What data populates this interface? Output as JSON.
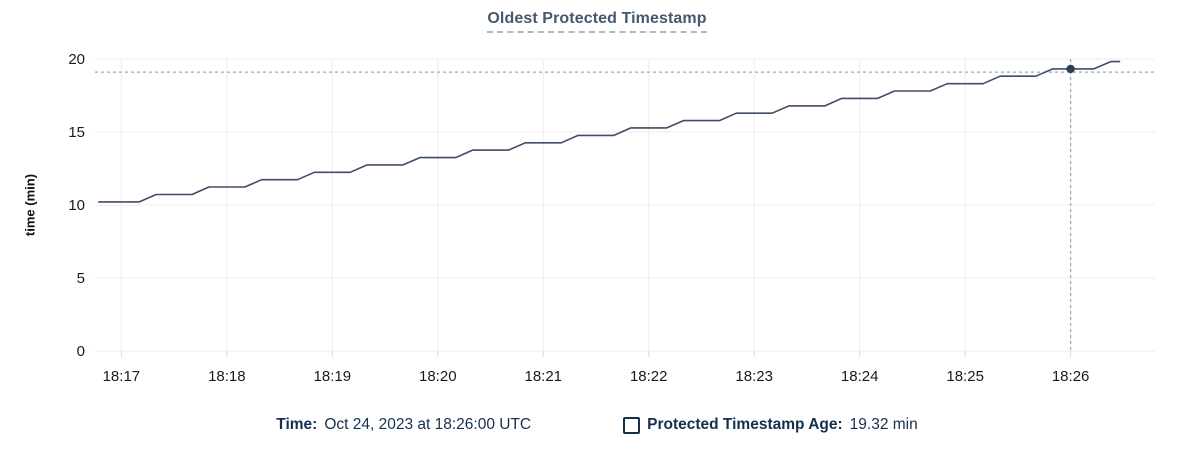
{
  "colors": {
    "line": "#3e4e66",
    "grid": "#ededed",
    "tick": "#d9d9d9",
    "crosshair": "#94aabb",
    "dot": "#2c3e55",
    "axis_text": "#1a1a1a",
    "title": "#46586f",
    "title_underline": "#a9bac8",
    "footer_text": "#14304f"
  },
  "chart_data": {
    "type": "line",
    "title": "Oldest Protected Timestamp",
    "xlabel": "",
    "ylabel": "time (min)",
    "ylim": [
      0,
      20
    ],
    "yticks": [
      0,
      5,
      10,
      15,
      20
    ],
    "x_domain_minutes": [
      -0.25,
      9.8
    ],
    "xticks_minutes": [
      0,
      1,
      2,
      3,
      4,
      5,
      6,
      7,
      8,
      9
    ],
    "xtick_labels": [
      "18:17",
      "18:18",
      "18:19",
      "18:20",
      "18:21",
      "18:22",
      "18:23",
      "18:24",
      "18:25",
      "18:26"
    ],
    "grid": true,
    "legend_position": "bottom",
    "series": [
      {
        "name": "Protected Timestamp Age",
        "points": [
          [
            -0.22,
            10.21
          ],
          [
            0.17,
            10.21
          ],
          [
            0.33,
            10.72
          ],
          [
            0.67,
            10.72
          ],
          [
            0.83,
            11.23
          ],
          [
            1.17,
            11.23
          ],
          [
            1.33,
            11.73
          ],
          [
            1.67,
            11.73
          ],
          [
            1.83,
            12.24
          ],
          [
            2.17,
            12.24
          ],
          [
            2.33,
            12.75
          ],
          [
            2.67,
            12.75
          ],
          [
            2.83,
            13.25
          ],
          [
            3.17,
            13.25
          ],
          [
            3.33,
            13.76
          ],
          [
            3.67,
            13.76
          ],
          [
            3.83,
            14.26
          ],
          [
            4.17,
            14.26
          ],
          [
            4.33,
            14.77
          ],
          [
            4.67,
            14.77
          ],
          [
            4.83,
            15.28
          ],
          [
            5.17,
            15.28
          ],
          [
            5.33,
            15.78
          ],
          [
            5.67,
            15.78
          ],
          [
            5.83,
            16.29
          ],
          [
            6.17,
            16.29
          ],
          [
            6.33,
            16.79
          ],
          [
            6.67,
            16.79
          ],
          [
            6.83,
            17.3
          ],
          [
            7.17,
            17.3
          ],
          [
            7.33,
            17.81
          ],
          [
            7.67,
            17.81
          ],
          [
            7.83,
            18.31
          ],
          [
            8.17,
            18.31
          ],
          [
            8.33,
            18.82
          ],
          [
            8.67,
            18.82
          ],
          [
            8.83,
            19.32
          ],
          [
            9.22,
            19.32
          ],
          [
            9.38,
            19.82
          ],
          [
            9.47,
            19.82
          ]
        ]
      }
    ],
    "crosshair": {
      "x_minute": 9.0,
      "x_label": "18:26",
      "hline_value": 19.1,
      "dot_value": 19.32
    }
  },
  "footer": {
    "time_label": "Time:",
    "time_value": "Oct 24, 2023 at 18:26:00 UTC",
    "age_label": "Protected Timestamp Age:",
    "age_value": "19.32 min"
  }
}
